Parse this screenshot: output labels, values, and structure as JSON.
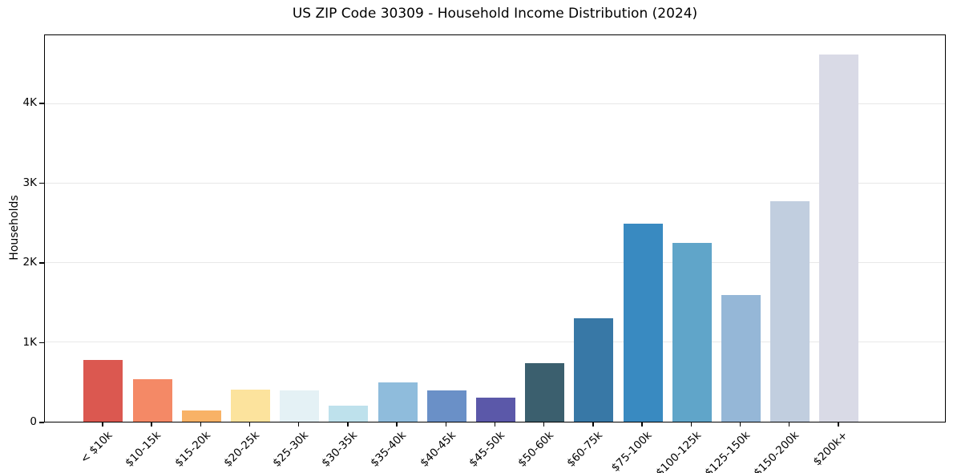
{
  "chart_data": {
    "type": "bar",
    "title": "US ZIP Code 30309 - Household Income Distribution (2024)",
    "xlabel": "",
    "ylabel": "Households",
    "categories": [
      "< $10k",
      "$10-15k",
      "$15-20k",
      "$20-25k",
      "$25-30k",
      "$30-35k",
      "$35-40k",
      "$40-45k",
      "$45-50k",
      "$50-60k",
      "$60-75k",
      "$75-100k",
      "$100-125k",
      "$125-150k",
      "$150-200k",
      "$200k+"
    ],
    "values": [
      780,
      540,
      140,
      400,
      390,
      200,
      500,
      390,
      300,
      740,
      1300,
      2500,
      2250,
      1600,
      2780,
      4630
    ],
    "bar_colors": [
      "#db5850",
      "#f48966",
      "#f8b266",
      "#fce39d",
      "#e4f1f5",
      "#bee1ec",
      "#8fbcdc",
      "#6a90c7",
      "#5b58a9",
      "#3b5f6e",
      "#3878a6",
      "#398ac1",
      "#60a5c9",
      "#95b7d7",
      "#c1cedf",
      "#d9dae6"
    ],
    "ylim": [
      0,
      4870
    ],
    "yticks": {
      "values": [
        0,
        1000,
        2000,
        3000,
        4000
      ],
      "labels": [
        "0",
        "1K",
        "2K",
        "3K",
        "4K"
      ]
    },
    "grid": "horizontal",
    "legend": "none",
    "x_tick_rotation_deg": 45,
    "styles": {
      "grid_color": "#e8e8e8",
      "spine_color": "#000000",
      "text_color": "#000000",
      "background": "#ffffff"
    }
  }
}
